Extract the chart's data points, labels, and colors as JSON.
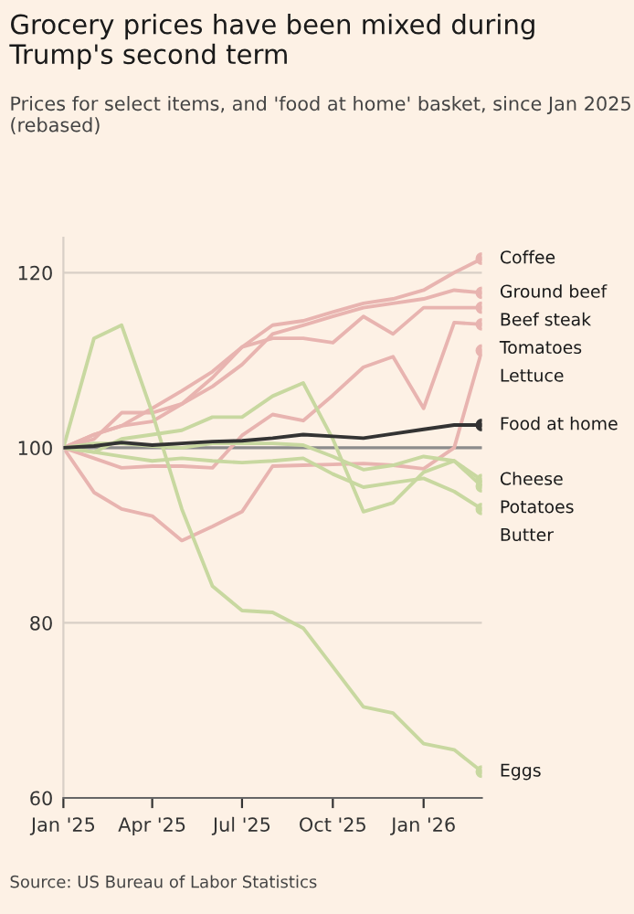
{
  "chart_data": {
    "type": "line",
    "title": "Grocery prices have been mixed during Trump's second term",
    "subtitle": "Prices for select items, and 'food at home' basket, since Jan 2025 (rebased)",
    "annotations": [
      "Source: US Bureau of Labor Statistics"
    ],
    "x": [
      "2025-01",
      "2025-02",
      "2025-03",
      "2025-04",
      "2025-05",
      "2025-06",
      "2025-07",
      "2025-08",
      "2025-09",
      "2025-10",
      "2025-11",
      "2025-12",
      "2026-01",
      "2026-02",
      "2026-03"
    ],
    "series": [
      {
        "name": "Coffee",
        "color": "#e8b4b0",
        "values": [
          100,
          101.5,
          102.5,
          104.5,
          106.5,
          108.7,
          111.5,
          114,
          114.5,
          115.5,
          116.5,
          117,
          118,
          120,
          121.6
        ]
      },
      {
        "name": "Ground beef",
        "color": "#e8b4b0",
        "values": [
          100,
          101,
          104,
          104,
          105,
          107,
          109.5,
          113,
          114,
          115,
          116,
          116.5,
          117,
          118,
          117.7
        ]
      },
      {
        "name": "Beef steak",
        "color": "#e8b4b0",
        "values": [
          100,
          101.5,
          102.5,
          103,
          105,
          108,
          111.5,
          112.5,
          112.5,
          112,
          115,
          113,
          116,
          116,
          116
        ]
      },
      {
        "name": "Tomatoes",
        "color": "#e8b4b0",
        "values": [
          100,
          98.8,
          97.7,
          97.9,
          97.9,
          97.7,
          101.4,
          103.8,
          103.1,
          106,
          109.2,
          110.4,
          104.5,
          114.3,
          114.1
        ]
      },
      {
        "name": "Lettuce",
        "color": "#e8b4b0",
        "values": [
          100,
          94.9,
          93,
          92.2,
          89.4,
          91,
          92.7,
          97.9,
          98,
          98.1,
          98.2,
          98,
          97.6,
          100,
          111.1
        ]
      },
      {
        "name": "Food at home",
        "color": "#333333",
        "values": [
          100,
          100.2,
          100.6,
          100.3,
          100.5,
          100.7,
          100.8,
          101.1,
          101.5,
          101.3,
          101.1,
          101.6,
          102.1,
          102.6,
          102.6
        ]
      },
      {
        "name": "Cheese",
        "color": "#c8d8a0",
        "values": [
          100,
          99.5,
          101,
          101.5,
          102,
          103.5,
          103.5,
          105.9,
          107.4,
          101,
          92.7,
          93.7,
          97.2,
          98.5,
          96.3
        ]
      },
      {
        "name": "Potatoes",
        "color": "#c8d8a0",
        "values": [
          100,
          100.5,
          100.5,
          100.2,
          100,
          100.5,
          100.5,
          100.5,
          100.3,
          99,
          97.5,
          98,
          99,
          98.5,
          95.6
        ]
      },
      {
        "name": "Butter",
        "color": "#c8d8a0",
        "values": [
          100,
          99.5,
          99,
          98.5,
          98.8,
          98.5,
          98.3,
          98.5,
          98.8,
          97,
          95.5,
          96,
          96.5,
          95,
          93
        ]
      },
      {
        "name": "Eggs",
        "color": "#c8d8a0",
        "values": [
          100,
          112.5,
          114,
          104,
          93,
          84.2,
          81.4,
          81.2,
          79.4,
          75,
          70.4,
          69.7,
          66.2,
          65.5,
          63
        ]
      }
    ],
    "ylim": [
      60,
      124
    ],
    "yticks": [
      60,
      80,
      100,
      120
    ],
    "xlim": [
      "2025-01",
      "2026-03"
    ],
    "xticks": [
      {
        "value": "2025-01",
        "label": "Jan '25"
      },
      {
        "value": "2025-04",
        "label": "Apr '25"
      },
      {
        "value": "2025-07",
        "label": "Jul '25"
      },
      {
        "value": "2025-10",
        "label": "Oct '25"
      },
      {
        "value": "2026-01",
        "label": "Jan '26"
      }
    ],
    "grid": "y",
    "ref_lines": [
      {
        "axis": "y",
        "value": 100,
        "label": null,
        "color": "#8c8c8c"
      }
    ],
    "legend": "right"
  }
}
